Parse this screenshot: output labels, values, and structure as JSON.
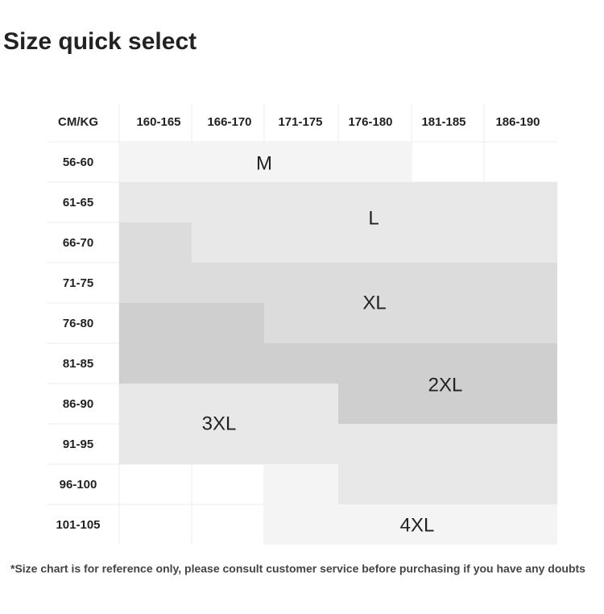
{
  "title": "Size quick select",
  "table": {
    "corner": "CM/KG",
    "columns": [
      "160-165",
      "166-170",
      "171-175",
      "176-180",
      "181-185",
      "186-190"
    ],
    "rows": [
      "56-60",
      "61-65",
      "66-70",
      "71-75",
      "76-80",
      "81-85",
      "86-90",
      "91-95",
      "96-100",
      "101-105"
    ],
    "sizes": [
      "M",
      "L",
      "XL",
      "2XL",
      "3XL",
      "4XL"
    ]
  },
  "footnote": "*Size chart is for reference only, please consult customer service before purchasing if you have any doubts"
}
